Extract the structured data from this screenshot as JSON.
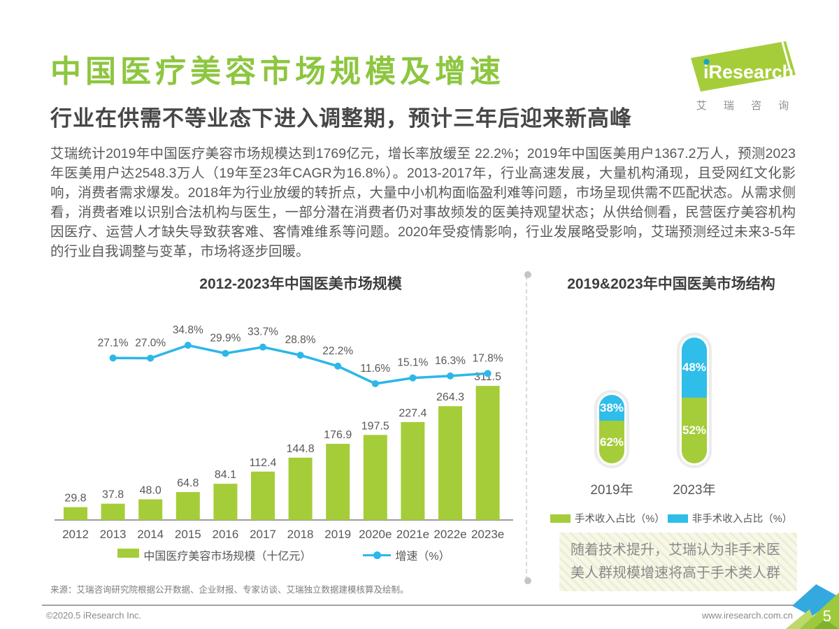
{
  "page": {
    "title": "中国医疗美容市场规模及增速",
    "subtitle": "行业在供需不等业态下进入调整期，预计三年后迎来新高峰",
    "paragraph": "艾瑞统计2019年中国医疗美容市场规模达到1769亿元，增长率放缓至 22.2%；2019年中国医美用户1367.2万人，预测2023年医美用户达2548.3万人（19年至23年CAGR为16.8%）。2013-2017年，行业高速发展，大量机构涌现，且受网红文化影响，消费者需求爆发。2018年为行业放缓的转折点，大量中小机构面临盈利难等问题，市场呈现供需不匹配状态。从需求侧看，消费者难以识别合法机构与医生，一部分潜在消费者仍对事故频发的医美持观望状态；从供给侧看，民营医疗美容机构因医疗、运营人才缺失导致获客难、客情难维系等问题。2020年受疫情影响，行业发展略受影响，艾瑞预测经过未来3-5年的行业自我调整与变革，市场将逐步回暖。",
    "logo": {
      "brand": "iResearch",
      "caption": "艾 瑞 咨 询"
    },
    "source": "来源：艾瑞咨询研究院根据公开数据、企业财报、专家访谈、艾瑞独立数据建模核算及绘制。",
    "footer": {
      "copyright": "©2020.5 iResearch Inc.",
      "website": "www.iresearch.com.cn",
      "page_number": "5"
    }
  },
  "colors": {
    "title_green": "#8dc63f",
    "bar_green": "#a5cd39",
    "line_cyan": "#2cb7e8",
    "pill_blue": "#2fbde9",
    "axis_gray": "#9c9c9c",
    "label_gray": "#595757"
  },
  "chart_data": [
    {
      "type": "bar",
      "title": "2012-2023年中国医美市场规模",
      "categories": [
        "2012",
        "2013",
        "2014",
        "2015",
        "2016",
        "2017",
        "2018",
        "2019",
        "2020e",
        "2021e",
        "2022e",
        "2023e"
      ],
      "series": [
        {
          "name": "中国医疗美容市场规模（十亿元）",
          "type": "bar",
          "values": [
            29.8,
            37.8,
            48.0,
            64.8,
            84.1,
            112.4,
            144.8,
            176.9,
            197.5,
            227.4,
            264.3,
            311.5
          ]
        },
        {
          "name": "增速（%）",
          "type": "line",
          "x": [
            "2013",
            "2014",
            "2015",
            "2016",
            "2017",
            "2018",
            "2019",
            "2020e",
            "2021e",
            "2022e",
            "2023e"
          ],
          "values": [
            27.1,
            27.0,
            34.8,
            29.9,
            33.7,
            28.8,
            22.2,
            11.6,
            15.1,
            16.3,
            17.8
          ]
        }
      ],
      "xlabel": "",
      "ylabel": "",
      "grid": false,
      "legend_position": "bottom"
    },
    {
      "type": "bar",
      "subtype": "stacked-pill",
      "title": "2019&2023年中国医美市场结构",
      "categories": [
        "2019年",
        "2023年"
      ],
      "series": [
        {
          "name": "手术收入占比（%）",
          "values": [
            62,
            52
          ]
        },
        {
          "name": "非手术收入占比（%）",
          "values": [
            38,
            48
          ]
        }
      ],
      "note": "随着技术提升，艾瑞认为非手术医美人群规模增速将高于手术类人群",
      "legend_position": "bottom"
    }
  ]
}
